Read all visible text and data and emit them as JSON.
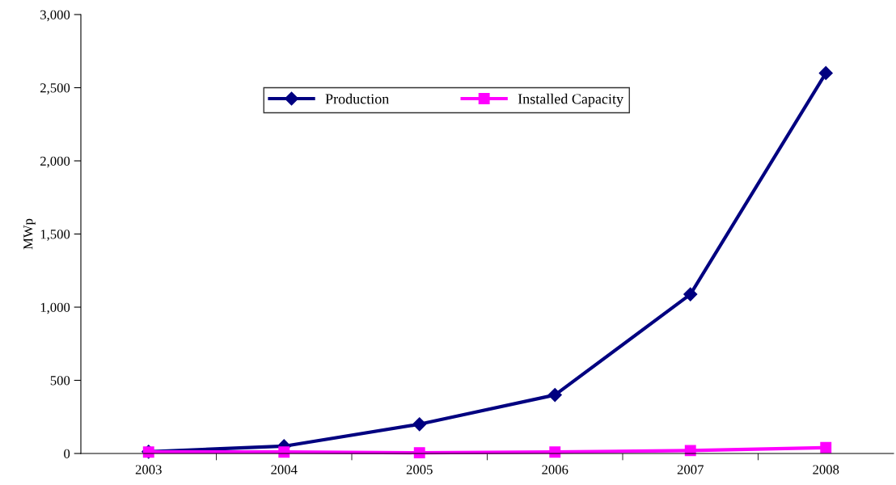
{
  "chart_data": {
    "type": "line",
    "ylabel": "MWp",
    "categories": [
      "2003",
      "2004",
      "2005",
      "2006",
      "2007",
      "2008"
    ],
    "series": [
      {
        "name": "Production",
        "color": "#000080",
        "marker": "diamond",
        "values": [
          12,
          50,
          200,
          400,
          1088,
          2600
        ]
      },
      {
        "name": "Installed Capacity",
        "color": "#ff00ff",
        "marker": "square",
        "values": [
          10,
          10,
          5,
          10,
          20,
          40
        ]
      }
    ],
    "ylim": [
      0,
      3000
    ],
    "yticks": [
      0,
      500,
      {
        "value": 1000,
        "label": "1,000"
      },
      {
        "value": 1500,
        "label": "1,500"
      },
      {
        "value": 2000,
        "label": "2,000"
      },
      {
        "value": 2500,
        "label": "2,500"
      },
      {
        "value": 3000,
        "label": "3,000"
      }
    ],
    "grid": false,
    "legend": "top",
    "line_style": "solid"
  }
}
